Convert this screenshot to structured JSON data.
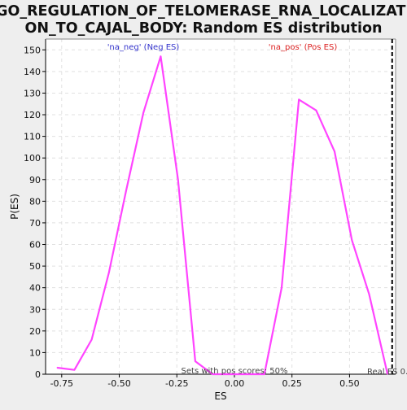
{
  "chart_data": {
    "type": "line",
    "title_line1": "GO_REGULATION_OF_TELOMERASE_RNA_LOCALIZATI",
    "title_line2": "ON_TO_CAJAL_BODY: Random ES distribution",
    "xlabel": "ES",
    "ylabel": "P(ES)",
    "xlim": [
      -0.82,
      0.7
    ],
    "ylim": [
      0,
      155
    ],
    "x_ticks": [
      -0.75,
      -0.5,
      -0.25,
      0.0,
      0.25,
      0.5
    ],
    "x_tick_labels": [
      "-0.75",
      "-0.50",
      "-0.25",
      "0.00",
      "0.25",
      "0.50"
    ],
    "y_ticks": [
      0,
      10,
      20,
      30,
      40,
      50,
      60,
      70,
      80,
      90,
      100,
      110,
      120,
      130,
      140,
      150
    ],
    "grid": true,
    "series": [
      {
        "color": "#ff44ff",
        "x": [
          -0.77,
          -0.695,
          -0.62,
          -0.545,
          -0.47,
          -0.395,
          -0.32,
          -0.245,
          -0.17,
          -0.095,
          -0.02,
          0.055,
          0.13,
          0.205,
          0.28,
          0.355,
          0.435,
          0.51,
          0.585,
          0.665
        ],
        "y": [
          3,
          2,
          16,
          47,
          85,
          121,
          147,
          90,
          6,
          0,
          0,
          0,
          0,
          40,
          127,
          122,
          103,
          62,
          37,
          0
        ]
      }
    ],
    "real_es_line": {
      "x": 0.685,
      "style": "dashed",
      "color": "#000000"
    },
    "annotations": {
      "neg": {
        "text": "'na_neg' (Neg ES)",
        "color": "#3333cc"
      },
      "pos": {
        "text": "'na_pos' (Pos ES)",
        "color": "#dd2222"
      },
      "bottom_center": "Sets with pos scores: 50%",
      "real_es": "Real ES 0."
    },
    "colors": {
      "plot_bg": "#ffffff",
      "page_bg": "#eeeeee",
      "line": "#ff44ff",
      "grid": "#e0e0e0"
    }
  }
}
